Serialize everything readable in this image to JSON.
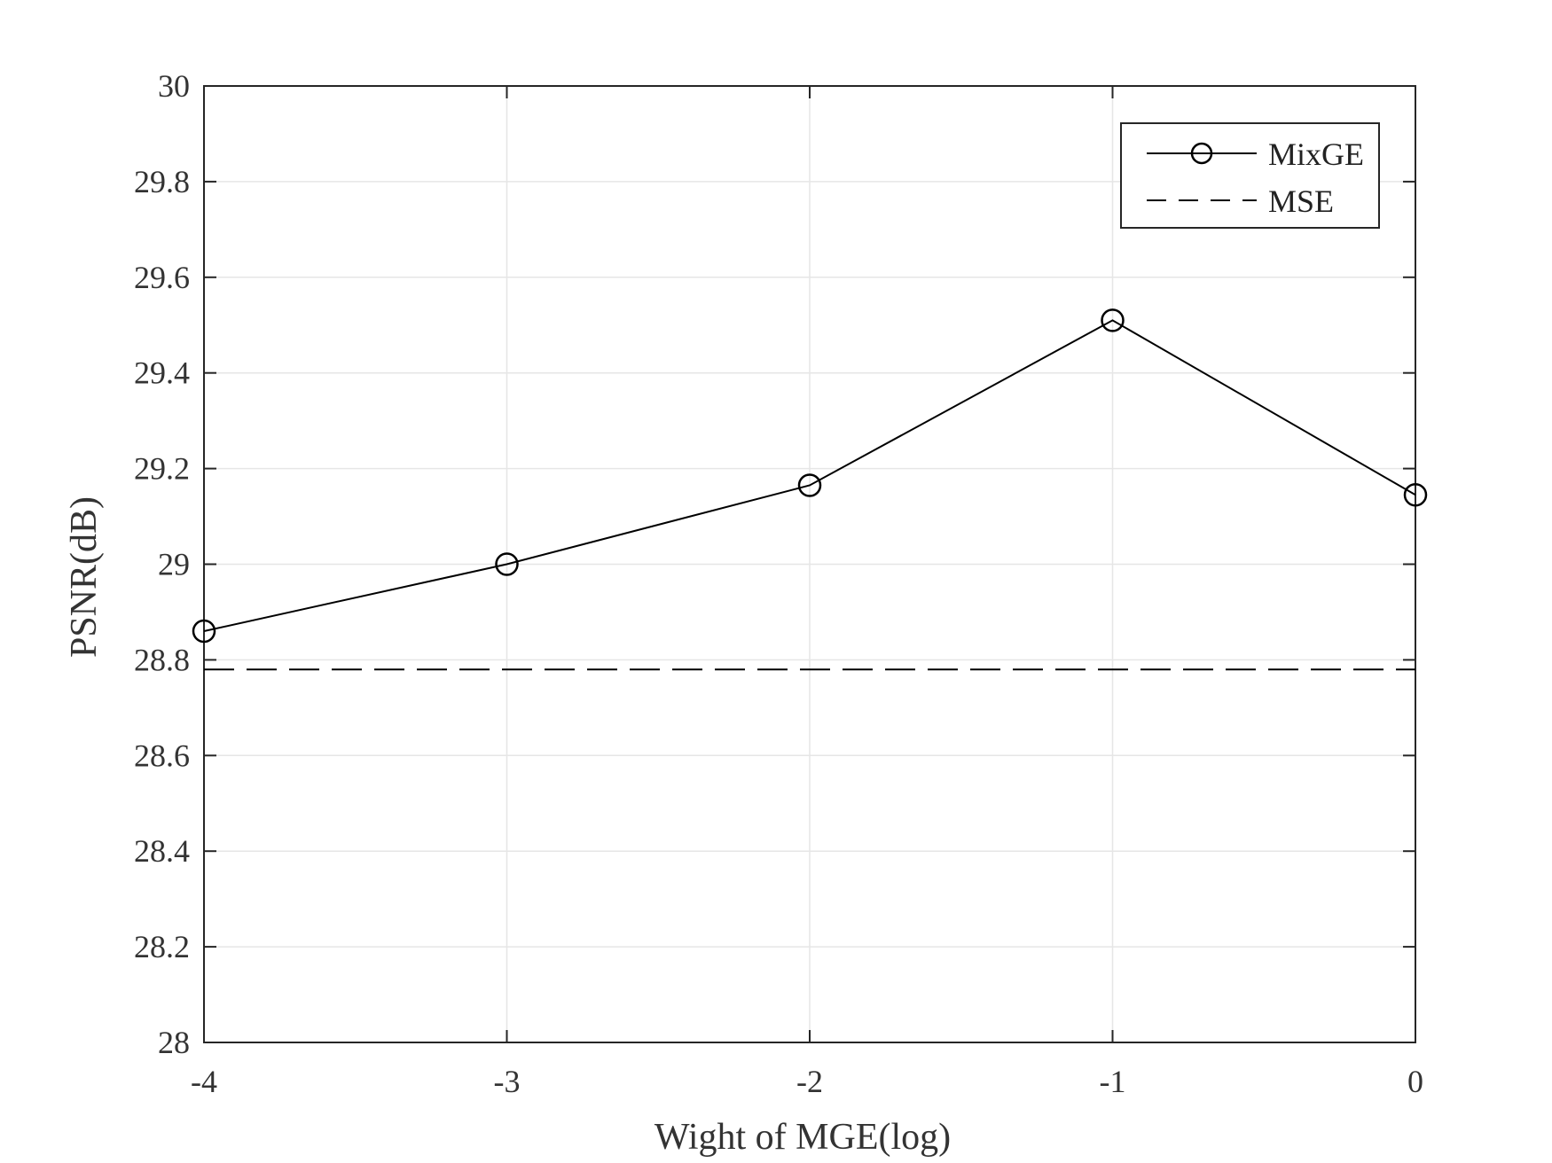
{
  "chart_data": {
    "type": "line",
    "title": "",
    "xlabel": "Wight of MGE(log)",
    "ylabel": "PSNR(dB)",
    "xlim": [
      -4,
      0
    ],
    "ylim": [
      28,
      30
    ],
    "x_ticks": [
      -4,
      -3,
      -2,
      -1,
      0
    ],
    "x_tick_labels": [
      "-4",
      "-3",
      "-2",
      "-1",
      "0"
    ],
    "y_ticks": [
      28,
      28.2,
      28.4,
      28.6,
      28.8,
      29,
      29.2,
      29.4,
      29.6,
      29.8,
      30
    ],
    "y_tick_labels": [
      "28",
      "28.2",
      "28.4",
      "28.6",
      "28.8",
      "29",
      "29.2",
      "29.4",
      "29.6",
      "29.8",
      "30"
    ],
    "grid": true,
    "legend_position": "top-right",
    "series": [
      {
        "name": "MixGE",
        "style": "solid-circle-markers",
        "color": "#000000",
        "x": [
          -4,
          -3,
          -2,
          -1,
          0
        ],
        "y": [
          28.86,
          29.0,
          29.165,
          29.51,
          29.145
        ]
      },
      {
        "name": "MSE",
        "style": "dashed",
        "color": "#000000",
        "x": [
          -4,
          0
        ],
        "y": [
          28.78,
          28.78
        ]
      }
    ]
  }
}
